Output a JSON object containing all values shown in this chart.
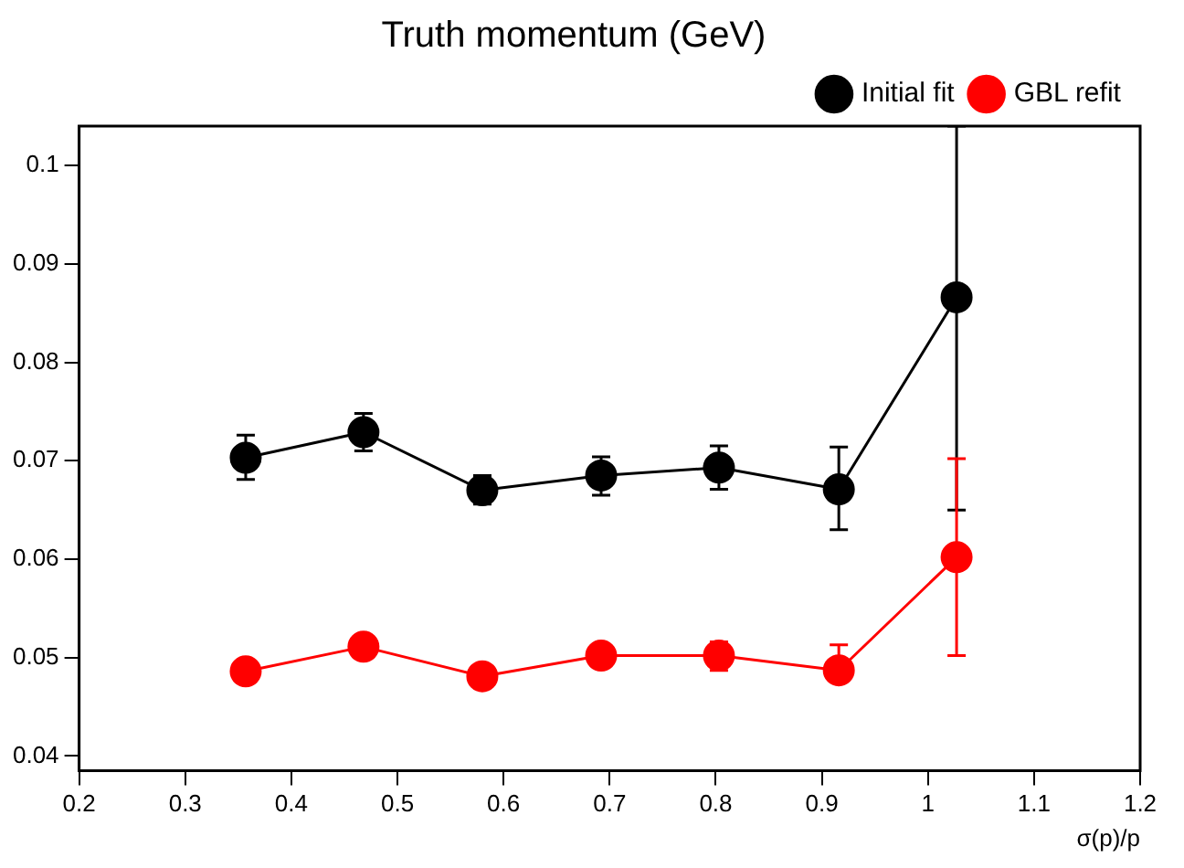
{
  "chart_data": {
    "type": "line",
    "title": "Truth momentum (GeV)",
    "xlabel": "σ(p)/p",
    "xlim": [
      0.2,
      1.2
    ],
    "xticks": [
      0.2,
      0.3,
      0.4,
      0.5,
      0.6,
      0.7,
      0.8,
      0.9,
      1,
      1.1,
      1.2
    ],
    "ylim": [
      0.0385,
      0.104
    ],
    "yticks": [
      0.04,
      0.05,
      0.06,
      0.07,
      0.08,
      0.09,
      0.1
    ],
    "grid": false,
    "legend": "top right",
    "marker": "circle",
    "line_style": "solid",
    "series": [
      {
        "name": "Initial fit",
        "color": "#000000",
        "x": [
          0.357,
          0.468,
          0.58,
          0.692,
          0.803,
          0.916,
          1.027
        ],
        "values": [
          0.0703,
          0.0729,
          0.067,
          0.0685,
          0.0693,
          0.0671,
          0.0866
        ],
        "errors": [
          [
            0.0681,
            0.0726
          ],
          [
            0.071,
            0.0748
          ],
          [
            0.0656,
            0.0685
          ],
          [
            0.0665,
            0.0704
          ],
          [
            0.0671,
            0.0715
          ],
          [
            0.063,
            0.0714
          ],
          [
            0.065,
            0.104
          ]
        ]
      },
      {
        "name": "GBL refit",
        "color": "#ff0000",
        "x": [
          0.357,
          0.468,
          0.58,
          0.692,
          0.803,
          0.916,
          1.027
        ],
        "values": [
          0.0486,
          0.0511,
          0.0481,
          0.0502,
          0.0502,
          0.0487,
          0.0602
        ],
        "errors": [
          null,
          null,
          null,
          null,
          [
            0.0487,
            0.0516
          ],
          [
            0.0477,
            0.0513
          ],
          [
            0.0502,
            0.0702
          ]
        ]
      }
    ]
  }
}
